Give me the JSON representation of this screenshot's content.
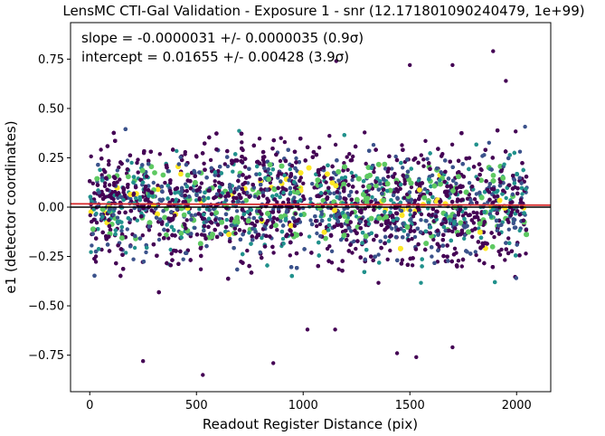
{
  "chart_data": {
    "type": "scatter",
    "title": "LensMC CTI-Gal Validation - Exposure 1 - snr (12.171801090240479, 1e+99)",
    "xlabel": "Readout Register Distance (pix)",
    "ylabel": "e1 (detector coordinates)",
    "xlim": [
      -90,
      2160
    ],
    "ylim": [
      -0.935,
      0.935
    ],
    "xticks": [
      0,
      500,
      1000,
      1500,
      2000
    ],
    "xtick_labels": [
      "0",
      "500",
      "1000",
      "1500",
      "2000"
    ],
    "yticks": [
      -0.75,
      -0.5,
      -0.25,
      0.0,
      0.25,
      0.5,
      0.75
    ],
    "ytick_labels": [
      "−0.75",
      "−0.50",
      "−0.25",
      "0.00",
      "0.25",
      "0.50",
      "0.75"
    ],
    "grid": false,
    "annotations": [
      "slope = -0.0000031 +/- 0.0000035 (0.9σ)",
      "intercept = 0.01655 +/- 0.00428 (3.9σ)"
    ],
    "fit_line": {
      "slope": -3.1e-06,
      "intercept": 0.01655,
      "color": "#d62728"
    },
    "fit_band": {
      "intercept_err": 0.00428,
      "color": "#f4a5a5"
    },
    "reference_line": {
      "y": 0.0,
      "color": "#000000"
    },
    "scatter": {
      "x_range": [
        0,
        2048
      ],
      "gap_x_range": [
        990,
        1060
      ],
      "colormap": "viridis",
      "colors": [
        "#440154",
        "#3b528b",
        "#21918c",
        "#5ec962",
        "#fde725"
      ],
      "sample_points": [
        {
          "x": 530,
          "y": -0.85
        },
        {
          "x": 860,
          "y": -0.79
        },
        {
          "x": 250,
          "y": -0.78
        },
        {
          "x": 1890,
          "y": 0.79
        },
        {
          "x": 1155,
          "y": 0.74
        },
        {
          "x": 1500,
          "y": 0.72
        },
        {
          "x": 1700,
          "y": 0.72
        },
        {
          "x": 1950,
          "y": 0.64
        },
        {
          "x": 1700,
          "y": -0.71
        },
        {
          "x": 1440,
          "y": -0.74
        },
        {
          "x": 1530,
          "y": -0.76
        },
        {
          "x": 1020,
          "y": -0.62
        },
        {
          "x": 1150,
          "y": -0.62
        }
      ]
    }
  }
}
